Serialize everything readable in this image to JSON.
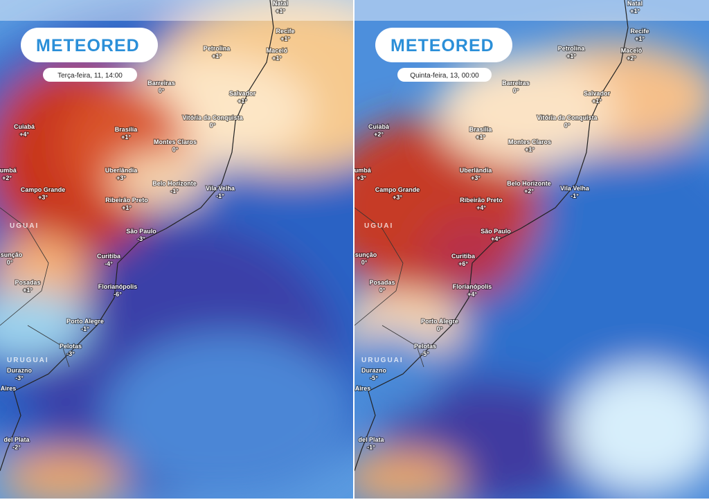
{
  "panels": [
    {
      "logo": "METEORED",
      "timestamp": "Terça-feira, 11, 14:00",
      "countries": [
        "UGUAI",
        "URUGUAI"
      ],
      "cities": [
        {
          "name": "Natal",
          "temp": "+1°"
        },
        {
          "name": "Recife",
          "temp": "+1°"
        },
        {
          "name": "Petrolina",
          "temp": "+1°"
        },
        {
          "name": "Maceió",
          "temp": "+1°"
        },
        {
          "name": "Barreiras",
          "temp": "0°"
        },
        {
          "name": "Salvador",
          "temp": "+1°"
        },
        {
          "name": "Cuiabá",
          "temp": "+4°"
        },
        {
          "name": "Brasília",
          "temp": "+1°"
        },
        {
          "name": "Vitória da Conquista",
          "temp": "0°"
        },
        {
          "name": "Montes Claros",
          "temp": "0°"
        },
        {
          "name": "rumbá",
          "temp": "+2°"
        },
        {
          "name": "Uberlândia",
          "temp": "+3°"
        },
        {
          "name": "Campo Grande",
          "temp": "+3°"
        },
        {
          "name": "Belo Horizonte",
          "temp": "-1°"
        },
        {
          "name": "Vila Velha",
          "temp": "-1°"
        },
        {
          "name": "Ribeirão Preto",
          "temp": "+1°"
        },
        {
          "name": "São Paulo",
          "temp": "-3°"
        },
        {
          "name": "Curitiba",
          "temp": "-4°"
        },
        {
          "name": "ssunção",
          "temp": "0°"
        },
        {
          "name": "Posadas",
          "temp": "+1°"
        },
        {
          "name": "Florianópolis",
          "temp": "-6°"
        },
        {
          "name": "Porto Alegre",
          "temp": "-1°"
        },
        {
          "name": "Pelotas",
          "temp": "-3°"
        },
        {
          "name": "Durazno",
          "temp": "-3°"
        },
        {
          "name": "Aires"
        },
        {
          "name": "del Plata",
          "temp": "-2°"
        }
      ]
    },
    {
      "logo": "METEORED",
      "timestamp": "Quinta-feira, 13, 00:00",
      "countries": [
        "UGUAI",
        "URUGUAI"
      ],
      "cities": [
        {
          "name": "Natal",
          "temp": "+1°"
        },
        {
          "name": "Recife",
          "temp": "+1°"
        },
        {
          "name": "Petrolina",
          "temp": "+1°"
        },
        {
          "name": "Maceió",
          "temp": "+2°"
        },
        {
          "name": "Barreiras",
          "temp": "0°"
        },
        {
          "name": "Salvador",
          "temp": "+1°"
        },
        {
          "name": "Cuiabá",
          "temp": "+2°"
        },
        {
          "name": "Brasília",
          "temp": "+1°"
        },
        {
          "name": "Vitória da Conquista",
          "temp": "0°"
        },
        {
          "name": "Montes Claros",
          "temp": "+1°"
        },
        {
          "name": "rumbá",
          "temp": "+3°"
        },
        {
          "name": "Uberlândia",
          "temp": "+3°"
        },
        {
          "name": "Campo Grande",
          "temp": "+3°"
        },
        {
          "name": "Belo Horizonte",
          "temp": "+2°"
        },
        {
          "name": "Vila Velha",
          "temp": "-1°"
        },
        {
          "name": "Ribeirão Preto",
          "temp": "+4°"
        },
        {
          "name": "São Paulo",
          "temp": "+4°"
        },
        {
          "name": "Curitiba",
          "temp": "+6°"
        },
        {
          "name": "ssunção",
          "temp": "0°"
        },
        {
          "name": "Posadas",
          "temp": "0°"
        },
        {
          "name": "Florianópolis",
          "temp": "+4°"
        },
        {
          "name": "Porto Alegre",
          "temp": "0°"
        },
        {
          "name": "Pelotas",
          "temp": "-5°"
        },
        {
          "name": "Durazno",
          "temp": "-5°"
        },
        {
          "name": "Aires"
        },
        {
          "name": "del Plata",
          "temp": "-1°"
        }
      ]
    }
  ]
}
